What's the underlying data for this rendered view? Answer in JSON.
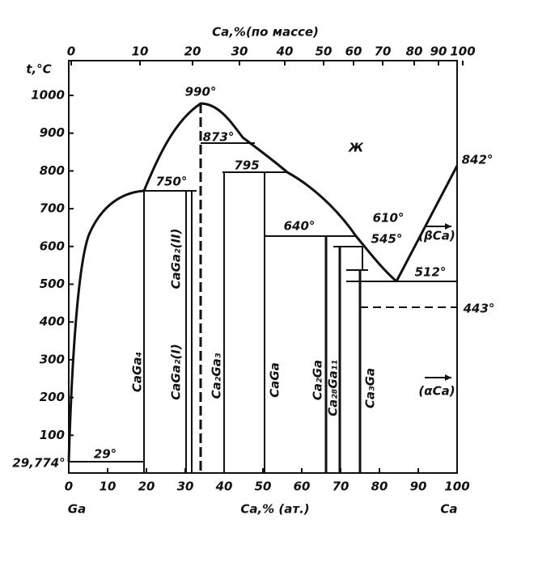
{
  "top_axis": {
    "label": "Ca,%(по массе)",
    "ticks": [
      "0",
      "10",
      "20",
      "30",
      "40",
      "50",
      "60",
      "70",
      "80",
      "90",
      "100"
    ]
  },
  "bottom_axis": {
    "label": "Ca,% (ат.)",
    "ticks": [
      "0",
      "10",
      "20",
      "30",
      "40",
      "50",
      "60",
      "70",
      "80",
      "90",
      "100"
    ],
    "left_end": "Ga",
    "right_end": "Ca"
  },
  "left_axis": {
    "label": "t,°C",
    "ticks": [
      "100",
      "200",
      "300",
      "400",
      "500",
      "600",
      "700",
      "800",
      "900",
      "1000"
    ]
  },
  "annotations": [
    "990°",
    "873°",
    "795",
    "750°",
    "640°",
    "610°",
    "545°",
    "512°",
    "842°",
    "443°",
    "29°",
    "29,774°",
    "Ж",
    "(βCa)",
    "(αCa)"
  ],
  "phases": [
    "CaGa₄",
    "CaGa₂(II)",
    "CaGa₂(I)",
    "Ca₂Ga₃",
    "CaGa",
    "Ca₂Ga",
    "Ca₂₈Ga₁₁",
    "Ca₃Ga"
  ]
}
